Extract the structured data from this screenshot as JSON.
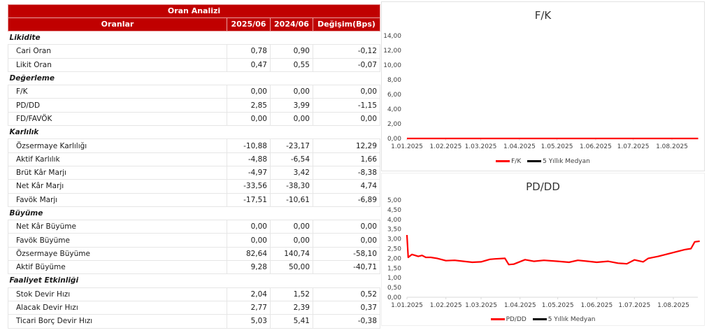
{
  "table": {
    "title": "Oran Analizi",
    "headers": [
      "Oranlar",
      "2025/06",
      "2024/06",
      "Değişim(Bps)"
    ],
    "rows": [
      {
        "type": "section",
        "label": "Likidite"
      },
      {
        "type": "data",
        "label": "Cari Oran",
        "v2025": "0,78",
        "v2024": "0,90",
        "change": "-0,12"
      },
      {
        "type": "data",
        "label": "Likit Oran",
        "v2025": "0,47",
        "v2024": "0,55",
        "change": "-0,07"
      },
      {
        "type": "section",
        "label": "Değerleme"
      },
      {
        "type": "data",
        "label": "F/K",
        "v2025": "0,00",
        "v2024": "0,00",
        "change": "0,00"
      },
      {
        "type": "data",
        "label": "PD/DD",
        "v2025": "2,85",
        "v2024": "3,99",
        "change": "-1,15"
      },
      {
        "type": "data",
        "label": "FD/FAVÖK",
        "v2025": "0,00",
        "v2024": "0,00",
        "change": "0,00"
      },
      {
        "type": "section",
        "label": "Karlılık"
      },
      {
        "type": "data",
        "label": "Özsermaye Karlılığı",
        "v2025": "-10,88",
        "v2024": "-23,17",
        "change": "12,29"
      },
      {
        "type": "data",
        "label": "Aktif Karlılık",
        "v2025": "-4,88",
        "v2024": "-6,54",
        "change": "1,66"
      },
      {
        "type": "data",
        "label": "Brüt Kâr Marjı",
        "v2025": "-4,97",
        "v2024": "3,42",
        "change": "-8,38"
      },
      {
        "type": "data",
        "label": "Net Kâr Marjı",
        "v2025": "-33,56",
        "v2024": "-38,30",
        "change": "4,74"
      },
      {
        "type": "data",
        "label": "Favök Marjı",
        "v2025": "-17,51",
        "v2024": "-10,61",
        "change": "-6,89"
      },
      {
        "type": "section",
        "label": "Büyüme"
      },
      {
        "type": "data",
        "label": "Net Kâr Büyüme",
        "v2025": "0,00",
        "v2024": "0,00",
        "change": "0,00"
      },
      {
        "type": "data",
        "label": "Favök Büyüme",
        "v2025": "0,00",
        "v2024": "0,00",
        "change": "0,00"
      },
      {
        "type": "data",
        "label": "Özsermaye Büyüme",
        "v2025": "82,64",
        "v2024": "140,74",
        "change": "-58,10"
      },
      {
        "type": "data",
        "label": "Aktif Büyüme",
        "v2025": "9,28",
        "v2024": "50,00",
        "change": "-40,71"
      },
      {
        "type": "section",
        "label": "Faaliyet Etkinliği"
      },
      {
        "type": "data",
        "label": "Stok Devir Hızı",
        "v2025": "2,04",
        "v2024": "1,52",
        "change": "0,52"
      },
      {
        "type": "data",
        "label": "Alacak Devir Hızı",
        "v2025": "2,77",
        "v2024": "2,39",
        "change": "0,37"
      },
      {
        "type": "data",
        "label": "Ticari Borç Devir Hızı",
        "v2025": "5,03",
        "v2024": "5,41",
        "change": "-0,38"
      }
    ]
  },
  "colors": {
    "header_red": "#C00000",
    "series_red": "#FF0000",
    "median_black": "#000000"
  },
  "chart_data": [
    {
      "type": "line",
      "title": "F/K",
      "xlabel": "",
      "ylabel": "",
      "ylim": [
        0,
        14
      ],
      "y_ticks": [
        "0,00",
        "2,00",
        "4,00",
        "6,00",
        "8,00",
        "10,00",
        "12,00",
        "14,00"
      ],
      "x_ticks": [
        "1.01.2025",
        "1.02.2025",
        "1.03.2025",
        "1.04.2025",
        "1.05.2025",
        "1.06.2025",
        "1.07.2025",
        "1.08.2025"
      ],
      "grid": false,
      "legend_position": "bottom",
      "legend": [
        "F/K",
        "5 Yıllık Medyan"
      ],
      "series": [
        {
          "name": "F/K",
          "color": "#FF0000",
          "x": [
            "1.01.2025",
            "1.02.2025",
            "1.03.2025",
            "1.04.2025",
            "1.05.2025",
            "1.06.2025",
            "1.07.2025",
            "1.08.2025",
            "22.08.2025"
          ],
          "values": [
            0,
            0,
            0,
            0,
            0,
            0,
            0,
            0,
            0
          ]
        },
        {
          "name": "5 Yıllık Medyan",
          "color": "#000000",
          "x": [],
          "values": []
        }
      ]
    },
    {
      "type": "line",
      "title": "PD/DD",
      "xlabel": "",
      "ylabel": "",
      "ylim": [
        0,
        5
      ],
      "y_ticks": [
        "0,00",
        "0,50",
        "1,00",
        "1,50",
        "2,00",
        "2,50",
        "3,00",
        "3,50",
        "4,00",
        "4,50",
        "5,00"
      ],
      "x_ticks": [
        "1.01.2025",
        "1.02.2025",
        "1.03.2025",
        "1.04.2025",
        "1.05.2025",
        "1.06.2025",
        "1.07.2025",
        "1.08.2025"
      ],
      "grid": false,
      "legend_position": "bottom",
      "legend": [
        "PD/DD",
        "5 Yıllık Medyan"
      ],
      "series": [
        {
          "name": "PD/DD",
          "color": "#FF0000",
          "x": [
            "1.01.2025",
            "2.01.2025",
            "5.01.2025",
            "10.01.2025",
            "13.01.2025",
            "16.01.2025",
            "20.01.2025",
            "25.01.2025",
            "1.02.2025",
            "8.02.2025",
            "15.02.2025",
            "22.02.2025",
            "1.03.2025",
            "8.03.2025",
            "12.03.2025",
            "20.03.2025",
            "23.03.2025",
            "27.03.2025",
            "5.04.2025",
            "12.04.2025",
            "20.04.2025",
            "1.05.2025",
            "10.05.2025",
            "17.05.2025",
            "25.05.2025",
            "1.06.2025",
            "10.06.2025",
            "18.06.2025",
            "25.06.2025",
            "1.07.2025",
            "8.07.2025",
            "12.07.2025",
            "20.07.2025",
            "1.08.2025",
            "10.08.2025",
            "15.08.2025",
            "18.08.2025",
            "22.08.2025"
          ],
          "values": [
            3.2,
            2.05,
            2.2,
            2.1,
            2.15,
            2.05,
            2.05,
            2.0,
            1.88,
            1.9,
            1.85,
            1.8,
            1.82,
            1.95,
            1.97,
            2.0,
            1.68,
            1.7,
            1.93,
            1.85,
            1.9,
            1.85,
            1.8,
            1.9,
            1.85,
            1.8,
            1.85,
            1.75,
            1.72,
            1.92,
            1.82,
            2.0,
            2.1,
            2.3,
            2.45,
            2.5,
            2.85,
            2.88
          ]
        },
        {
          "name": "5 Yıllık Medyan",
          "color": "#000000",
          "x": [],
          "values": []
        }
      ]
    }
  ]
}
